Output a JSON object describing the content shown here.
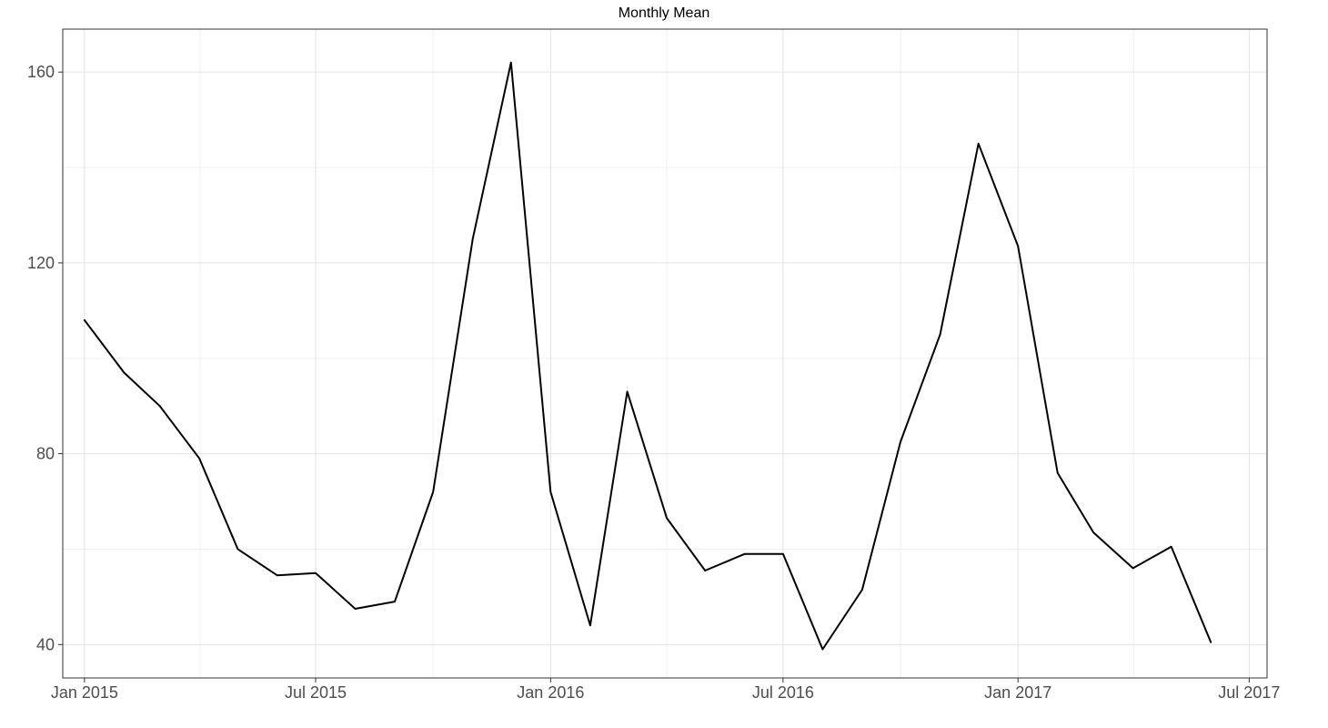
{
  "chart_data": {
    "type": "line",
    "title": "Monthly Mean",
    "xlabel": "",
    "ylabel": "",
    "grid": true,
    "x_tick_labels": [
      "Jan 2015",
      "Jul 2015",
      "Jan 2016",
      "Jul 2016",
      "Jan 2017",
      "Jul 2017"
    ],
    "y_tick_labels": [
      "40",
      "80",
      "120",
      "160"
    ],
    "y_ticks": [
      40,
      80,
      120,
      160
    ],
    "ylim": [
      33,
      169
    ],
    "xlim": [
      "2014-12-15",
      "2017-07-15"
    ],
    "series": [
      {
        "color": "#000000",
        "x": [
          "2015-01",
          "2015-02",
          "2015-03",
          "2015-04",
          "2015-05",
          "2015-06",
          "2015-07",
          "2015-08",
          "2015-09",
          "2015-10",
          "2015-11",
          "2015-12",
          "2016-01",
          "2016-02",
          "2016-03",
          "2016-04",
          "2016-05",
          "2016-06",
          "2016-07",
          "2016-08",
          "2016-09",
          "2016-10",
          "2016-11",
          "2016-12",
          "2017-01",
          "2017-02",
          "2017-03",
          "2017-04",
          "2017-05",
          "2017-06"
        ],
        "values": [
          108,
          97,
          90,
          79,
          60,
          54.5,
          55,
          47.5,
          49,
          72,
          125,
          162,
          72,
          44,
          93,
          66.5,
          55.5,
          59,
          59,
          39,
          51.5,
          82.5,
          105,
          145,
          123.5,
          76,
          63.5,
          56,
          60.5,
          40.5
        ]
      }
    ]
  }
}
